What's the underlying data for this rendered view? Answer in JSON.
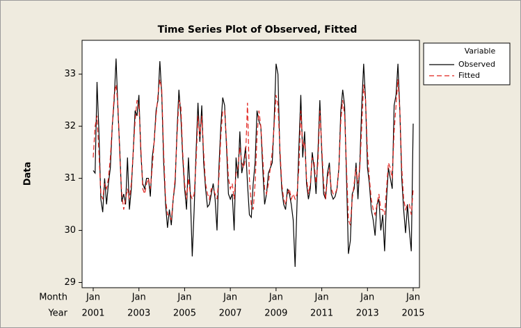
{
  "chart_data": {
    "type": "line",
    "title": "Time Series Plot of Observed, Fitted",
    "ylabel": "Data",
    "x_row_labels": [
      "Month",
      "Year"
    ],
    "legend_title": "Variable",
    "legend": "upper-right-outside",
    "x": [
      "2001-01",
      "2001-02",
      "2001-03",
      "2001-04",
      "2001-05",
      "2001-06",
      "2001-07",
      "2001-08",
      "2001-09",
      "2001-10",
      "2001-11",
      "2001-12",
      "2002-01",
      "2002-02",
      "2002-03",
      "2002-04",
      "2002-05",
      "2002-06",
      "2002-07",
      "2002-08",
      "2002-09",
      "2002-10",
      "2002-11",
      "2002-12",
      "2003-01",
      "2003-02",
      "2003-03",
      "2003-04",
      "2003-05",
      "2003-06",
      "2003-07",
      "2003-08",
      "2003-09",
      "2003-10",
      "2003-11",
      "2003-12",
      "2004-01",
      "2004-02",
      "2004-03",
      "2004-04",
      "2004-05",
      "2004-06",
      "2004-07",
      "2004-08",
      "2004-09",
      "2004-10",
      "2004-11",
      "2004-12",
      "2005-01",
      "2005-02",
      "2005-03",
      "2005-04",
      "2005-05",
      "2005-06",
      "2005-07",
      "2005-08",
      "2005-09",
      "2005-10",
      "2005-11",
      "2005-12",
      "2006-01",
      "2006-02",
      "2006-03",
      "2006-04",
      "2006-05",
      "2006-06",
      "2006-07",
      "2006-08",
      "2006-09",
      "2006-10",
      "2006-11",
      "2006-12",
      "2007-01",
      "2007-02",
      "2007-03",
      "2007-04",
      "2007-05",
      "2007-06",
      "2007-07",
      "2007-08",
      "2007-09",
      "2007-10",
      "2007-11",
      "2007-12",
      "2008-01",
      "2008-02",
      "2008-03",
      "2008-04",
      "2008-05",
      "2008-06",
      "2008-07",
      "2008-08",
      "2008-09",
      "2008-10",
      "2008-11",
      "2008-12",
      "2009-01",
      "2009-02",
      "2009-03",
      "2009-04",
      "2009-05",
      "2009-06",
      "2009-07",
      "2009-08",
      "2009-09",
      "2009-10",
      "2009-11",
      "2009-12",
      "2010-01",
      "2010-02",
      "2010-03",
      "2010-04",
      "2010-05",
      "2010-06",
      "2010-07",
      "2010-08",
      "2010-09",
      "2010-10",
      "2010-11",
      "2010-12",
      "2011-01",
      "2011-02",
      "2011-03",
      "2011-04",
      "2011-05",
      "2011-06",
      "2011-07",
      "2011-08",
      "2011-09",
      "2011-10",
      "2011-11",
      "2011-12",
      "2012-01",
      "2012-02",
      "2012-03",
      "2012-04",
      "2012-05",
      "2012-06",
      "2012-07",
      "2012-08",
      "2012-09",
      "2012-10",
      "2012-11",
      "2012-12",
      "2013-01",
      "2013-02",
      "2013-03",
      "2013-04",
      "2013-05",
      "2013-06",
      "2013-07",
      "2013-08",
      "2013-09",
      "2013-10",
      "2013-11",
      "2013-12",
      "2014-01",
      "2014-02",
      "2014-03",
      "2014-04",
      "2014-05",
      "2014-06",
      "2014-07",
      "2014-08",
      "2014-09",
      "2014-10",
      "2014-11",
      "2014-12",
      "2015-01"
    ],
    "series": [
      {
        "name": "Observed",
        "color": "#000000",
        "dash": "solid",
        "values": [
          31.15,
          31.1,
          32.85,
          31.9,
          30.6,
          30.35,
          31.0,
          30.5,
          30.9,
          31.2,
          32.0,
          32.5,
          33.3,
          32.3,
          31.5,
          30.55,
          30.7,
          30.5,
          31.4,
          30.4,
          30.8,
          31.5,
          32.3,
          32.2,
          32.6,
          31.5,
          30.9,
          30.8,
          31.0,
          31.0,
          30.65,
          31.4,
          31.7,
          32.3,
          32.5,
          33.25,
          32.6,
          31.3,
          30.5,
          30.05,
          30.4,
          30.1,
          30.6,
          30.9,
          31.9,
          32.7,
          32.2,
          31.4,
          30.8,
          30.4,
          31.4,
          30.7,
          29.5,
          30.4,
          31.5,
          32.45,
          31.7,
          32.4,
          31.3,
          30.8,
          30.45,
          30.5,
          30.7,
          30.9,
          30.6,
          30.0,
          31.2,
          32.0,
          32.55,
          32.4,
          31.6,
          30.7,
          30.6,
          30.7,
          30.0,
          31.4,
          31.0,
          31.9,
          31.1,
          31.3,
          31.6,
          30.9,
          30.3,
          30.25,
          30.9,
          31.3,
          32.3,
          32.1,
          32.0,
          31.2,
          30.5,
          30.7,
          31.1,
          31.2,
          31.3,
          32.1,
          33.2,
          33.0,
          31.5,
          30.8,
          30.5,
          30.4,
          30.8,
          30.7,
          30.5,
          30.2,
          29.3,
          30.5,
          31.6,
          32.6,
          31.4,
          31.9,
          30.9,
          30.6,
          30.8,
          31.5,
          31.2,
          30.7,
          31.5,
          32.5,
          31.5,
          30.7,
          30.6,
          31.1,
          31.3,
          30.7,
          30.6,
          30.65,
          30.8,
          31.2,
          32.3,
          32.7,
          32.4,
          31.0,
          29.55,
          29.8,
          30.7,
          30.8,
          31.3,
          30.6,
          31.3,
          32.4,
          33.2,
          32.5,
          31.2,
          30.9,
          30.4,
          30.2,
          29.9,
          30.5,
          30.6,
          30.0,
          30.3,
          29.6,
          30.6,
          31.2,
          31.0,
          30.8,
          32.4,
          32.6,
          33.2,
          32.3,
          31.0,
          30.4,
          29.95,
          30.5,
          30.0,
          29.6,
          32.05
        ]
      },
      {
        "name": "Fitted",
        "color": "#e0201b",
        "dash": "dashed",
        "values": [
          31.4,
          32.0,
          32.2,
          31.5,
          30.7,
          30.6,
          30.9,
          30.8,
          31.0,
          31.4,
          32.0,
          32.6,
          32.8,
          32.4,
          31.4,
          30.7,
          30.4,
          30.6,
          30.8,
          30.6,
          30.9,
          31.5,
          32.1,
          32.5,
          32.4,
          31.6,
          30.8,
          30.7,
          30.9,
          31.0,
          30.8,
          31.2,
          31.7,
          32.2,
          32.6,
          32.9,
          32.7,
          31.5,
          30.6,
          30.3,
          30.3,
          30.2,
          30.6,
          31.0,
          31.8,
          32.5,
          32.4,
          31.5,
          30.9,
          30.6,
          31.0,
          30.7,
          30.6,
          30.7,
          31.3,
          32.2,
          31.8,
          32.2,
          31.5,
          30.9,
          30.7,
          30.6,
          30.8,
          30.8,
          30.7,
          30.6,
          31.0,
          31.8,
          32.3,
          32.3,
          31.7,
          31.0,
          30.8,
          30.9,
          30.6,
          31.1,
          31.2,
          31.6,
          31.3,
          31.2,
          31.4,
          32.45,
          31.0,
          30.5,
          30.4,
          30.9,
          31.8,
          32.3,
          32.0,
          31.4,
          30.8,
          30.7,
          30.9,
          31.2,
          31.5,
          32.0,
          32.6,
          32.4,
          31.6,
          30.9,
          30.6,
          30.5,
          30.7,
          30.8,
          30.6,
          30.7,
          30.6,
          30.7,
          31.2,
          32.3,
          31.6,
          31.7,
          31.0,
          30.7,
          30.9,
          31.4,
          31.3,
          30.9,
          31.3,
          32.3,
          31.6,
          30.9,
          30.6,
          31.0,
          31.2,
          30.8,
          30.7,
          30.7,
          30.8,
          31.2,
          32.1,
          32.5,
          32.2,
          31.2,
          30.2,
          30.1,
          30.6,
          30.9,
          31.2,
          30.9,
          31.2,
          32.0,
          32.8,
          32.5,
          31.5,
          31.0,
          30.6,
          30.4,
          30.3,
          30.5,
          30.7,
          30.4,
          30.4,
          30.3,
          30.8,
          31.3,
          31.2,
          31.0,
          31.9,
          32.4,
          32.9,
          32.3,
          31.2,
          30.6,
          30.4,
          30.5,
          30.5,
          30.3,
          30.8
        ]
      }
    ],
    "ylim": [
      28.9,
      33.65
    ],
    "yticks": [
      29,
      30,
      31,
      32,
      33
    ],
    "xticks": [
      {
        "value": "2001-01",
        "label": [
          "Jan",
          "2001"
        ]
      },
      {
        "value": "2003-01",
        "label": [
          "Jan",
          "2003"
        ]
      },
      {
        "value": "2005-01",
        "label": [
          "Jan",
          "2005"
        ]
      },
      {
        "value": "2007-01",
        "label": [
          "Jan",
          "2007"
        ]
      },
      {
        "value": "2009-01",
        "label": [
          "Jan",
          "2009"
        ]
      },
      {
        "value": "2011-01",
        "label": [
          "Jan",
          "2011"
        ]
      },
      {
        "value": "2013-01",
        "label": [
          "Jan",
          "2013"
        ]
      },
      {
        "value": "2015-01",
        "label": [
          "Jan",
          "2015"
        ]
      }
    ]
  }
}
